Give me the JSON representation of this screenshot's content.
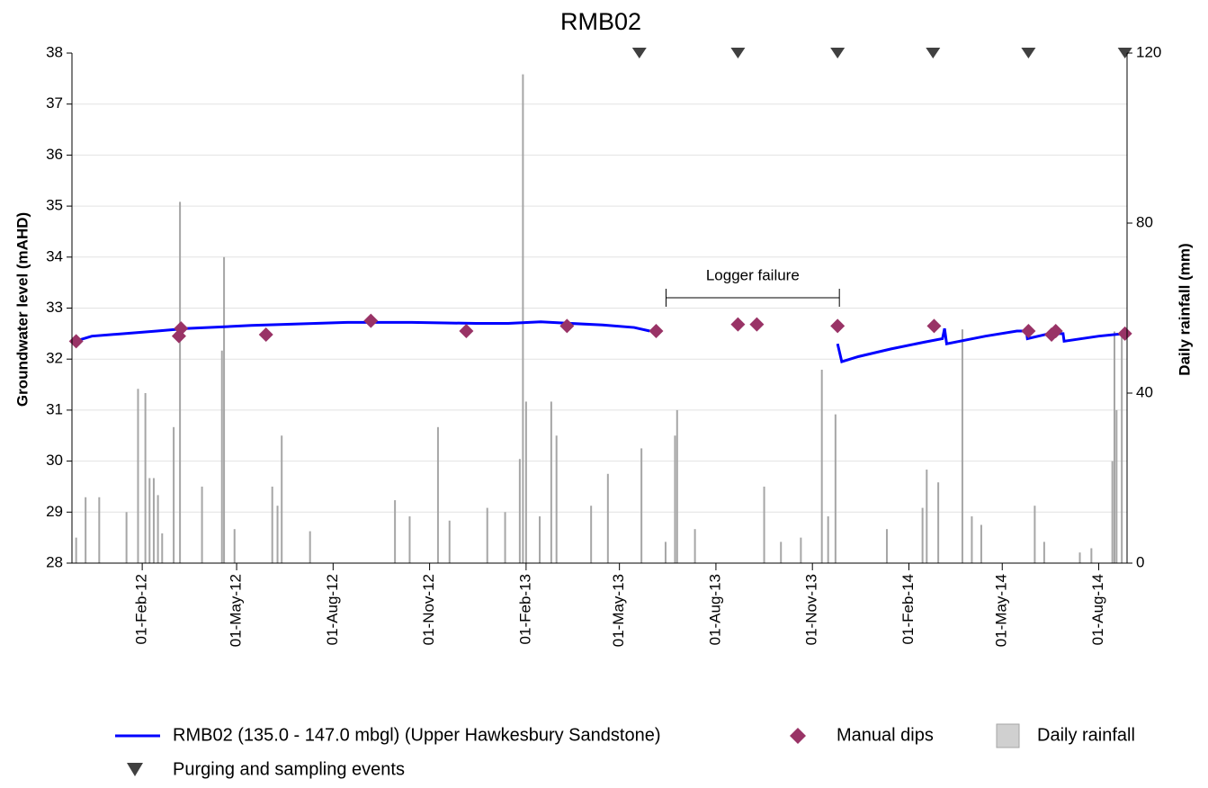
{
  "chart_data": {
    "type": "line",
    "title": "RMB02",
    "y_label": "Groundwater level (mAHD)",
    "y2_label": "Daily rainfall (mm)",
    "annotation": "Logger failure",
    "xlim": [
      "2011-11-26",
      "2014-08-28"
    ],
    "xticks": [
      {
        "value": "2012-02-01",
        "label": "01-Feb-12"
      },
      {
        "value": "2012-05-01",
        "label": "01-May-12"
      },
      {
        "value": "2012-08-01",
        "label": "01-Aug-12"
      },
      {
        "value": "2012-11-01",
        "label": "01-Nov-12"
      },
      {
        "value": "2013-02-01",
        "label": "01-Feb-13"
      },
      {
        "value": "2013-05-01",
        "label": "01-May-13"
      },
      {
        "value": "2013-08-01",
        "label": "01-Aug-13"
      },
      {
        "value": "2013-11-01",
        "label": "01-Nov-13"
      },
      {
        "value": "2014-02-01",
        "label": "01-Feb-14"
      },
      {
        "value": "2014-05-01",
        "label": "01-May-14"
      },
      {
        "value": "2014-08-01",
        "label": "01-Aug-14"
      }
    ],
    "ylim": [
      28,
      38
    ],
    "yticks": [
      28,
      29,
      30,
      31,
      32,
      33,
      34,
      35,
      36,
      37,
      38
    ],
    "y2lim": [
      0,
      120
    ],
    "y2ticks": [
      0,
      40,
      80,
      120
    ],
    "grid": true,
    "series": [
      {
        "name": "RMB02 (135.0 - 147.0 mbgl) (Upper Hawkesbury Sandstone)",
        "type": "line",
        "color": "#0000ff",
        "x": [
          "2011-11-29",
          "2011-12-15",
          "2012-01-15",
          "2012-02-15",
          "2012-03-15",
          "2012-04-15",
          "2012-05-15",
          "2012-06-15",
          "2012-07-15",
          "2012-08-15",
          "2012-10-15",
          "2012-12-15",
          "2013-01-15",
          "2013-02-15",
          "2013-03-15",
          "2013-04-15",
          "2013-05-15",
          "2013-05-30",
          "2013-09-01",
          "2013-11-25",
          "2013-11-29",
          "2013-12-15",
          "2014-01-15",
          "2014-02-15",
          "2014-03-05",
          "2014-03-07",
          "2014-03-09",
          "2014-04-15",
          "2014-05-15",
          "2014-05-24",
          "2014-05-25",
          "2014-06-15",
          "2014-06-28",
          "2014-06-29",
          "2014-08-01",
          "2014-08-25"
        ],
        "values": [
          32.35,
          32.45,
          32.5,
          32.55,
          32.6,
          32.63,
          32.66,
          32.68,
          32.7,
          32.72,
          32.72,
          32.7,
          32.7,
          32.73,
          32.7,
          32.67,
          32.62,
          32.55,
          null,
          32.3,
          31.95,
          32.05,
          32.2,
          32.33,
          32.4,
          32.6,
          32.3,
          32.45,
          32.55,
          32.55,
          32.4,
          32.5,
          32.5,
          32.35,
          32.45,
          32.5
        ]
      },
      {
        "name": "Manual dips",
        "type": "scatter",
        "marker": "diamond",
        "color": "#993366",
        "x": [
          "2011-11-30",
          "2012-03-07",
          "2012-03-09",
          "2012-05-29",
          "2012-09-06",
          "2012-12-06",
          "2013-03-12",
          "2013-06-05",
          "2013-08-22",
          "2013-09-09",
          "2013-11-25",
          "2014-02-25",
          "2014-05-26",
          "2014-06-17",
          "2014-06-21",
          "2014-08-26"
        ],
        "values": [
          32.35,
          32.45,
          32.6,
          32.48,
          32.75,
          32.55,
          32.65,
          32.55,
          32.68,
          32.68,
          32.65,
          32.65,
          32.55,
          32.48,
          32.55,
          32.5
        ]
      },
      {
        "name": "Daily rainfall",
        "type": "bar",
        "axis": "y2",
        "color": "#a6a6a6",
        "legend_color": "#d0d0d0",
        "x": [
          "2011-11-30",
          "2011-12-09",
          "2011-12-22",
          "2012-01-17",
          "2012-01-28",
          "2012-02-04",
          "2012-02-08",
          "2012-02-12",
          "2012-02-16",
          "2012-02-20",
          "2012-03-02",
          "2012-03-08",
          "2012-03-29",
          "2012-04-17",
          "2012-04-19",
          "2012-04-29",
          "2012-06-04",
          "2012-06-09",
          "2012-06-13",
          "2012-07-10",
          "2012-09-29",
          "2012-10-13",
          "2012-11-09",
          "2012-11-20",
          "2012-12-26",
          "2013-01-12",
          "2013-01-26",
          "2013-01-29",
          "2013-02-01",
          "2013-02-14",
          "2013-02-25",
          "2013-03-02",
          "2013-04-04",
          "2013-04-20",
          "2013-05-22",
          "2013-06-14",
          "2013-06-23",
          "2013-06-25",
          "2013-07-12",
          "2013-09-16",
          "2013-10-02",
          "2013-10-21",
          "2013-11-10",
          "2013-11-16",
          "2013-11-23",
          "2014-01-11",
          "2014-02-14",
          "2014-02-18",
          "2014-03-01",
          "2014-03-24",
          "2014-04-02",
          "2014-04-11",
          "2014-06-01",
          "2014-06-10",
          "2014-07-14",
          "2014-07-25",
          "2014-08-14",
          "2014-08-16",
          "2014-08-18",
          "2014-08-23"
        ],
        "values": [
          6,
          15.5,
          15.5,
          12,
          41,
          40,
          20,
          20,
          16,
          7,
          32,
          85,
          18,
          50,
          72,
          8,
          18,
          13.5,
          30,
          7.5,
          14.8,
          11,
          32,
          10,
          13,
          12,
          24.5,
          115,
          38,
          11,
          38,
          30,
          13.5,
          21,
          27,
          5,
          30,
          36,
          8,
          18,
          5,
          6,
          45.5,
          11,
          35,
          8,
          13,
          22,
          19,
          55,
          11,
          9,
          13.5,
          5,
          2.5,
          3.5,
          24,
          54.5,
          36,
          54
        ]
      },
      {
        "name": "Purging and sampling events",
        "type": "event",
        "marker": "triangle",
        "color": "#404040",
        "x": [
          "2013-05-20",
          "2013-08-22",
          "2013-11-25",
          "2014-02-24",
          "2014-05-26",
          "2014-08-26"
        ]
      }
    ]
  }
}
